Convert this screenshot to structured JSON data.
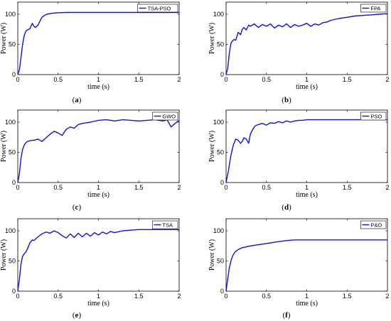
{
  "chart_data": [
    {
      "type": "line",
      "caption_label": "a",
      "xlabel": "time (s)",
      "ylabel": "Power (W)",
      "xlim": [
        0,
        2
      ],
      "ylim": [
        0,
        120
      ],
      "xticks": [
        "0",
        "0.5",
        "1",
        "1.5",
        "2"
      ],
      "yticks": [
        "0",
        "50",
        "100"
      ],
      "legend_position": "top-right",
      "series": [
        {
          "name": "TSA-PSO",
          "color": "#1010ee",
          "x": [
            0,
            0.02,
            0.04,
            0.06,
            0.08,
            0.1,
            0.12,
            0.15,
            0.18,
            0.2,
            0.22,
            0.25,
            0.28,
            0.3,
            0.33,
            0.36,
            0.4,
            0.45,
            0.5,
            0.6,
            0.8,
            1.0,
            1.2,
            1.5,
            1.8,
            2.0
          ],
          "y": [
            0,
            8,
            28,
            50,
            65,
            72,
            74,
            76,
            85,
            80,
            78,
            82,
            90,
            95,
            98,
            100,
            101,
            102,
            102.5,
            103,
            103,
            103,
            103,
            103,
            103,
            103
          ]
        }
      ]
    },
    {
      "type": "line",
      "caption_label": "b",
      "xlabel": "time (s)",
      "ylabel": "Power (W)",
      "xlim": [
        0,
        2
      ],
      "ylim": [
        0,
        120
      ],
      "xticks": [
        "0",
        "0.5",
        "1",
        "1.5",
        "2"
      ],
      "yticks": [
        "0",
        "50",
        "100"
      ],
      "legend_position": "top-right",
      "series": [
        {
          "name": "FPA",
          "color": "#1010ee",
          "x": [
            0,
            0.02,
            0.04,
            0.06,
            0.08,
            0.1,
            0.12,
            0.15,
            0.18,
            0.2,
            0.22,
            0.25,
            0.28,
            0.3,
            0.35,
            0.4,
            0.45,
            0.5,
            0.55,
            0.6,
            0.65,
            0.7,
            0.75,
            0.8,
            0.85,
            0.9,
            0.95,
            1.0,
            1.05,
            1.1,
            1.15,
            1.2,
            1.25,
            1.3,
            1.4,
            1.5,
            1.6,
            1.7,
            1.8,
            1.9,
            2.0
          ],
          "y": [
            0,
            10,
            35,
            52,
            56,
            58,
            57,
            70,
            66,
            75,
            78,
            74,
            82,
            80,
            84,
            78,
            83,
            80,
            84,
            77,
            82,
            79,
            84,
            78,
            83,
            80,
            82,
            85,
            80,
            84,
            82,
            86,
            87,
            90,
            93,
            95,
            97,
            98,
            99,
            100,
            101
          ]
        }
      ]
    },
    {
      "type": "line",
      "caption_label": "c",
      "xlabel": "time (s)",
      "ylabel": "Power (W)",
      "xlim": [
        0,
        2
      ],
      "ylim": [
        0,
        120
      ],
      "xticks": [
        "0",
        "0.5",
        "1",
        "1.5",
        "2"
      ],
      "yticks": [
        "0",
        "50",
        "100"
      ],
      "legend_position": "top-right",
      "series": [
        {
          "name": "GWO",
          "color": "#1010ee",
          "x": [
            0,
            0.02,
            0.04,
            0.06,
            0.08,
            0.1,
            0.12,
            0.15,
            0.18,
            0.2,
            0.25,
            0.3,
            0.35,
            0.4,
            0.45,
            0.5,
            0.55,
            0.6,
            0.65,
            0.7,
            0.75,
            0.8,
            0.9,
            1.0,
            1.1,
            1.2,
            1.3,
            1.4,
            1.5,
            1.6,
            1.7,
            1.8,
            1.85,
            1.9,
            1.95,
            2.0
          ],
          "y": [
            0,
            15,
            40,
            55,
            62,
            66,
            68,
            69,
            70,
            70,
            72,
            68,
            74,
            80,
            85,
            82,
            78,
            88,
            92,
            90,
            96,
            98,
            100,
            103,
            104,
            102,
            104,
            103,
            102,
            103,
            104,
            102,
            104,
            92,
            98,
            103
          ]
        }
      ]
    },
    {
      "type": "line",
      "caption_label": "d",
      "xlabel": "time (s)",
      "ylabel": "Power (W)",
      "xlim": [
        0,
        2
      ],
      "ylim": [
        0,
        120
      ],
      "xticks": [
        "0",
        "0.5",
        "1",
        "1.5",
        "2"
      ],
      "yticks": [
        "0",
        "50",
        "100"
      ],
      "legend_position": "top-right",
      "series": [
        {
          "name": "PSO",
          "color": "#1010ee",
          "x": [
            0,
            0.03,
            0.06,
            0.09,
            0.12,
            0.15,
            0.18,
            0.2,
            0.22,
            0.25,
            0.28,
            0.3,
            0.33,
            0.36,
            0.4,
            0.45,
            0.5,
            0.55,
            0.6,
            0.65,
            0.7,
            0.75,
            0.8,
            0.85,
            0.9,
            0.95,
            1.0,
            1.2,
            1.5,
            1.8,
            2.0
          ],
          "y": [
            0,
            20,
            45,
            62,
            72,
            70,
            65,
            68,
            74,
            72,
            65,
            80,
            88,
            94,
            96,
            98,
            95,
            99,
            98,
            101,
            99,
            102,
            100,
            102,
            103,
            103,
            104,
            104,
            104,
            104,
            104
          ]
        }
      ]
    },
    {
      "type": "line",
      "caption_label": "e",
      "xlabel": "time (s)",
      "ylabel": "Power (W)",
      "xlim": [
        0,
        2
      ],
      "ylim": [
        0,
        120
      ],
      "xticks": [
        "0",
        "0.5",
        "1",
        "1.5",
        "2"
      ],
      "yticks": [
        "0",
        "50",
        "100"
      ],
      "legend_position": "top-right",
      "series": [
        {
          "name": "TSA",
          "color": "#1010ee",
          "x": [
            0,
            0.02,
            0.04,
            0.06,
            0.08,
            0.1,
            0.12,
            0.15,
            0.18,
            0.2,
            0.25,
            0.3,
            0.35,
            0.4,
            0.45,
            0.5,
            0.55,
            0.6,
            0.65,
            0.7,
            0.75,
            0.8,
            0.85,
            0.9,
            0.95,
            1.0,
            1.05,
            1.1,
            1.15,
            1.2,
            1.3,
            1.4,
            1.5,
            1.6,
            1.8,
            2.0
          ],
          "y": [
            0,
            20,
            45,
            58,
            62,
            65,
            70,
            80,
            85,
            84,
            90,
            95,
            98,
            96,
            100,
            97,
            92,
            88,
            95,
            89,
            96,
            90,
            96,
            91,
            97,
            93,
            98,
            95,
            99,
            97,
            100,
            101,
            102,
            102,
            102,
            102
          ]
        }
      ]
    },
    {
      "type": "line",
      "caption_label": "f",
      "xlabel": "time (s)",
      "ylabel": "Power (W)",
      "xlim": [
        0,
        2
      ],
      "ylim": [
        0,
        120
      ],
      "xticks": [
        "0",
        "0.5",
        "1",
        "1.5",
        "2"
      ],
      "yticks": [
        "0",
        "50",
        "100"
      ],
      "legend_position": "top-right",
      "series": [
        {
          "name": "P&O",
          "color": "#1010ee",
          "x": [
            0,
            0.02,
            0.04,
            0.06,
            0.08,
            0.1,
            0.12,
            0.15,
            0.2,
            0.3,
            0.4,
            0.5,
            0.6,
            0.7,
            0.8,
            0.85,
            0.9,
            1.0,
            1.5,
            2.0
          ],
          "y": [
            0,
            20,
            38,
            50,
            58,
            63,
            66,
            69,
            72,
            75,
            77,
            79,
            81,
            83,
            84.5,
            85,
            85,
            85,
            85,
            85
          ]
        }
      ]
    }
  ]
}
